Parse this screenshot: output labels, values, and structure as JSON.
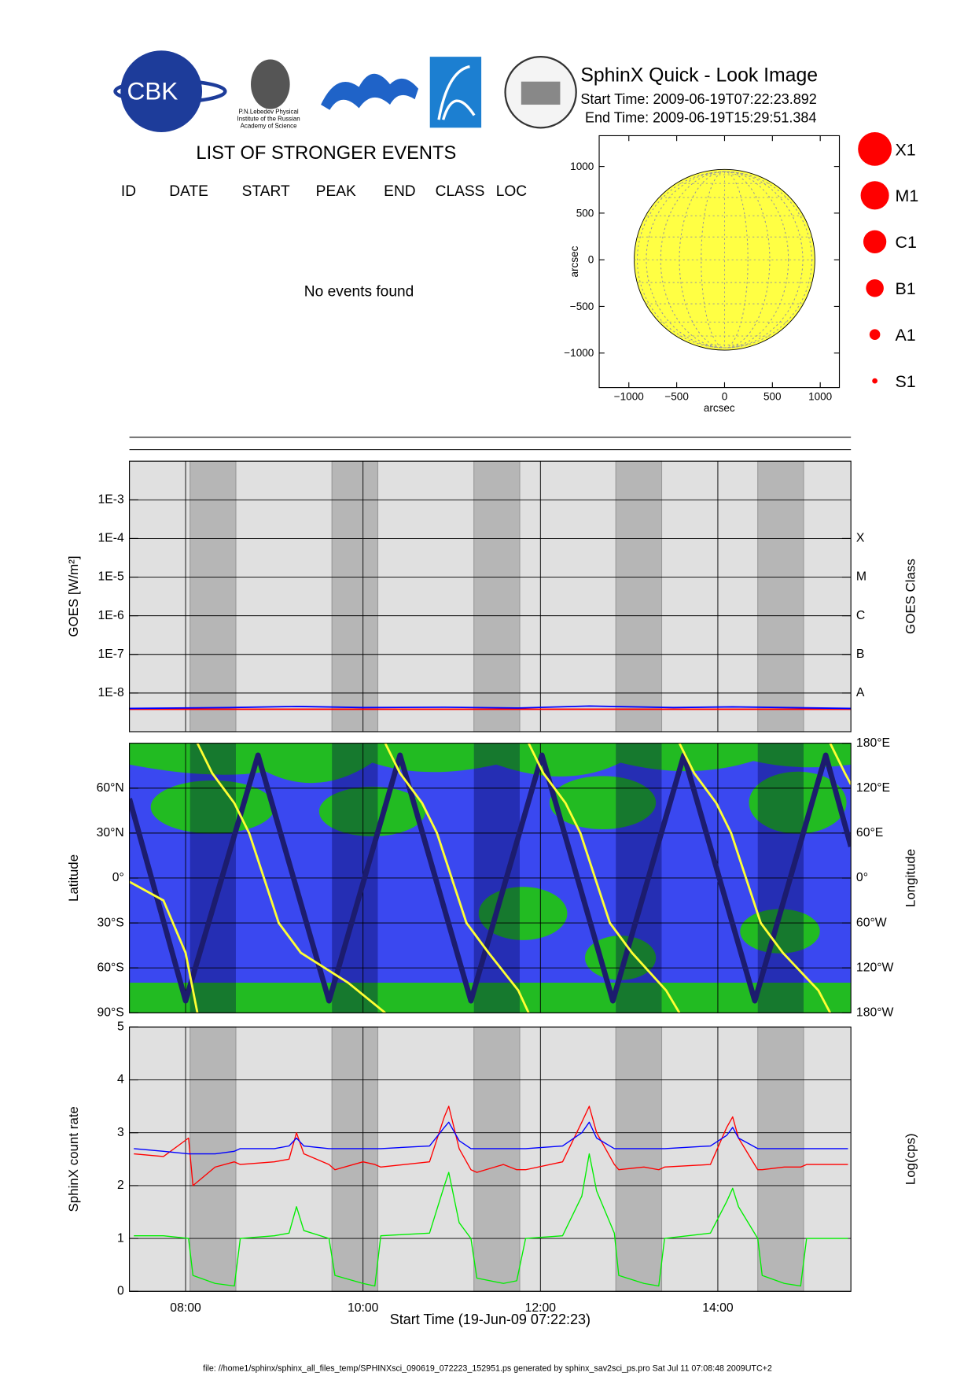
{
  "header": {
    "title": "SphinX Quick - Look Image",
    "start_time": "Start Time: 2009-06-19T07:22:23.892",
    "end_time": "End Time: 2009-06-19T15:29:51.384",
    "logo_texts": [
      "CBK",
      "P.N.Lebedev Physical",
      "Institute of the Russian",
      "Academy of Science"
    ]
  },
  "events": {
    "title": "LIST OF STRONGER EVENTS",
    "columns": [
      "ID",
      "DATE",
      "START",
      "PEAK",
      "END",
      "CLASS",
      "LOC"
    ],
    "message": "No events found"
  },
  "class_legend": [
    "X1",
    "M1",
    "C1",
    "B1",
    "A1",
    "S1"
  ],
  "footer": "file: //home1/sphinx/sphinx_all_files_temp/SPHINXsci_090619_072223_152951.ps generated by sphinx_sav2sci_ps.pro Sat Jul 11 07:08:48 2009UTC+2",
  "chart_data": [
    {
      "type": "disc",
      "xlabel": "arcsec",
      "ylabel": "arcsec",
      "xlim": [
        -1310,
        1200
      ],
      "ylim": [
        -1370,
        1330
      ],
      "xticks": [
        {
          "value": -1000,
          "label": "−1000"
        },
        {
          "value": -500,
          "label": "−500"
        },
        0,
        500,
        1000
      ],
      "yticks": [
        {
          "value": -1000,
          "label": "−1000"
        },
        {
          "value": -500,
          "label": "−500"
        },
        0,
        500,
        1000
      ],
      "disc_radius": 944,
      "color": "#ffff44"
    },
    {
      "type": "line",
      "ylabel": "GOES [W/m²]",
      "y2label": "GOES Class",
      "yscale": "log",
      "ylim": [
        1e-09,
        0.01
      ],
      "yticks": [
        {
          "value": 1e-08,
          "label": "1E-8"
        },
        {
          "value": 1e-07,
          "label": "1E-7"
        },
        {
          "value": 1e-06,
          "label": "1E-6"
        },
        {
          "value": 1e-05,
          "label": "1E-5"
        },
        {
          "value": 0.0001,
          "label": "1E-4"
        },
        {
          "value": 0.001,
          "label": "1E-3"
        }
      ],
      "y2scale": "log",
      "y2lim": [
        1e-09,
        0.01
      ],
      "y2ticks": [
        {
          "value": 1e-08,
          "label": "A"
        },
        {
          "value": 1e-07,
          "label": "B"
        },
        {
          "value": 1e-06,
          "label": "C"
        },
        {
          "value": 1e-05,
          "label": "M"
        },
        {
          "value": 0.0001,
          "label": "X"
        }
      ],
      "grid": true,
      "xlim": [
        "07:22",
        "15:30"
      ],
      "shaded": [
        [
          "08:03",
          "08:34"
        ],
        [
          "09:39",
          "10:10"
        ],
        [
          "11:15",
          "11:46"
        ],
        [
          "12:51",
          "13:22"
        ],
        [
          "14:27",
          "14:58"
        ]
      ],
      "x": [
        "07:22",
        "08:30",
        "09:15",
        "10:00",
        "10:55",
        "11:45",
        "12:33",
        "13:30",
        "14:10",
        "15:30"
      ],
      "series": [
        {
          "color": "#ff0000",
          "values": [
            3.8e-09,
            3.8e-09,
            3.8e-09,
            3.8e-09,
            3.8e-09,
            3.8e-09,
            3.8e-09,
            3.8e-09,
            3.8e-09,
            3.8e-09
          ]
        },
        {
          "color": "#0000ff",
          "values": [
            4e-09,
            4.2e-09,
            4.5e-09,
            4.2e-09,
            4.3e-09,
            4.1e-09,
            4.6e-09,
            4.2e-09,
            4.4e-09,
            4e-09
          ]
        }
      ]
    },
    {
      "type": "line",
      "ylabel": "Latitude",
      "y2label": "Longitude",
      "ylim": [
        -90,
        90
      ],
      "yticks": [
        {
          "value": -90,
          "label": "90°S"
        },
        {
          "value": -60,
          "label": "60°S"
        },
        {
          "value": -30,
          "label": "30°S"
        },
        {
          "value": 0,
          "label": "0°"
        },
        {
          "value": 30,
          "label": "30°N"
        },
        {
          "value": 60,
          "label": "60°N"
        }
      ],
      "y2lim": [
        -180,
        180
      ],
      "y2ticks": [
        {
          "value": -180,
          "label": "180°W"
        },
        {
          "value": -120,
          "label": "120°W"
        },
        {
          "value": -60,
          "label": "60°W"
        },
        {
          "value": 0,
          "label": "0°"
        },
        {
          "value": 60,
          "label": "60°E"
        },
        {
          "value": 120,
          "label": "120°E"
        },
        {
          "value": 180,
          "label": "180°E"
        }
      ],
      "grid": true,
      "xlim": [
        "07:22",
        "15:30"
      ],
      "series": [
        {
          "color": "#1c1c6e",
          "x": [
            "07:22",
            "08:00",
            "08:49",
            "09:37",
            "10:25",
            "11:13",
            "12:01",
            "12:49",
            "13:37",
            "14:25",
            "15:13",
            "15:30"
          ],
          "values": [
            53,
            -82,
            82,
            -82,
            82,
            -82,
            82,
            -82,
            82,
            -82,
            82,
            21
          ]
        },
        {
          "color": "#ffff33",
          "axis": "y2",
          "x": [
            "07:22",
            "07:45",
            "08:00",
            "08:08",
            "08:08",
            "08:08",
            "08:18",
            "08:33",
            "08:43",
            "08:53",
            "09:03",
            "09:18",
            "09:50",
            "10:15",
            "10:15",
            "10:15",
            "10:25",
            "10:40",
            "10:50",
            "11:00",
            "11:10",
            "11:25",
            "11:45",
            "11:52",
            "11:52",
            "11:52",
            "12:02",
            "12:17",
            "12:27",
            "12:37",
            "12:47",
            "13:02",
            "13:25",
            "13:34",
            "13:34",
            "13:34",
            "13:44",
            "13:59",
            "14:09",
            "14:19",
            "14:29",
            "14:44",
            "15:08",
            "15:16",
            "15:16",
            "15:16",
            "15:26",
            "15:30"
          ],
          "values": [
            -5,
            -30,
            -100,
            -180,
            null,
            180,
            140,
            100,
            60,
            0,
            -60,
            -100,
            -140,
            -180,
            null,
            180,
            140,
            100,
            60,
            0,
            -60,
            -100,
            -150,
            -180,
            null,
            180,
            140,
            100,
            60,
            0,
            -60,
            -100,
            -150,
            -180,
            null,
            180,
            140,
            100,
            60,
            0,
            -60,
            -100,
            -150,
            -180,
            null,
            180,
            140,
            125
          ]
        }
      ]
    },
    {
      "type": "line",
      "ylabel": "SphinX count rate",
      "y2label": "Log(cps)",
      "xlabel": "Start Time (19-Jun-09 07:22:23)",
      "ylim": [
        0,
        5
      ],
      "yticks": [
        0,
        1,
        2,
        3,
        4,
        5
      ],
      "xlim": [
        "07:22",
        "15:30"
      ],
      "xticks": [
        "08:00",
        "10:00",
        "12:00",
        "14:00"
      ],
      "grid": true,
      "x": [
        "07:25",
        "07:45",
        "08:02",
        "08:05",
        "08:20",
        "08:33",
        "08:37",
        "09:00",
        "09:10",
        "09:15",
        "09:20",
        "09:37",
        "09:41",
        "10:00",
        "10:08",
        "10:12",
        "10:45",
        "10:55",
        "10:58",
        "11:05",
        "11:13",
        "11:17",
        "11:35",
        "11:44",
        "11:50",
        "12:15",
        "12:28",
        "12:33",
        "12:38",
        "12:50",
        "12:53",
        "13:10",
        "13:20",
        "13:24",
        "13:55",
        "14:06",
        "14:10",
        "14:14",
        "14:27",
        "14:30",
        "14:45",
        "14:56",
        "15:00",
        "15:28"
      ],
      "series": [
        {
          "color": "#00ee00",
          "values": [
            1.05,
            1.05,
            1.0,
            0.3,
            0.15,
            0.1,
            1.0,
            1.05,
            1.1,
            1.6,
            1.15,
            1.0,
            0.3,
            0.15,
            0.1,
            1.05,
            1.1,
            2.0,
            2.25,
            1.3,
            1.0,
            0.25,
            0.15,
            0.2,
            1.0,
            1.05,
            1.8,
            2.6,
            1.9,
            1.1,
            0.3,
            0.15,
            0.1,
            1.0,
            1.1,
            1.7,
            1.95,
            1.6,
            1.0,
            0.3,
            0.15,
            0.1,
            1.0,
            1.0
          ]
        },
        {
          "color": "#ff0000",
          "values": [
            2.6,
            2.55,
            2.9,
            2.0,
            2.35,
            2.45,
            2.4,
            2.45,
            2.5,
            3.0,
            2.6,
            2.4,
            2.3,
            2.45,
            2.4,
            2.35,
            2.45,
            3.3,
            3.5,
            2.7,
            2.3,
            2.25,
            2.4,
            2.3,
            2.3,
            2.45,
            3.2,
            3.5,
            3.0,
            2.4,
            2.3,
            2.35,
            2.3,
            2.35,
            2.4,
            3.1,
            3.3,
            2.9,
            2.3,
            2.3,
            2.35,
            2.35,
            2.4,
            2.4
          ]
        },
        {
          "color": "#0000ff",
          "values": [
            2.7,
            2.65,
            2.6,
            2.6,
            2.6,
            2.65,
            2.7,
            2.7,
            2.75,
            2.9,
            2.75,
            2.7,
            2.7,
            2.7,
            2.7,
            2.7,
            2.75,
            3.1,
            3.2,
            2.85,
            2.7,
            2.7,
            2.7,
            2.7,
            2.7,
            2.75,
            3.0,
            3.2,
            2.9,
            2.7,
            2.7,
            2.7,
            2.7,
            2.7,
            2.75,
            2.95,
            3.1,
            2.9,
            2.7,
            2.7,
            2.7,
            2.7,
            2.7,
            2.7
          ]
        }
      ]
    }
  ]
}
